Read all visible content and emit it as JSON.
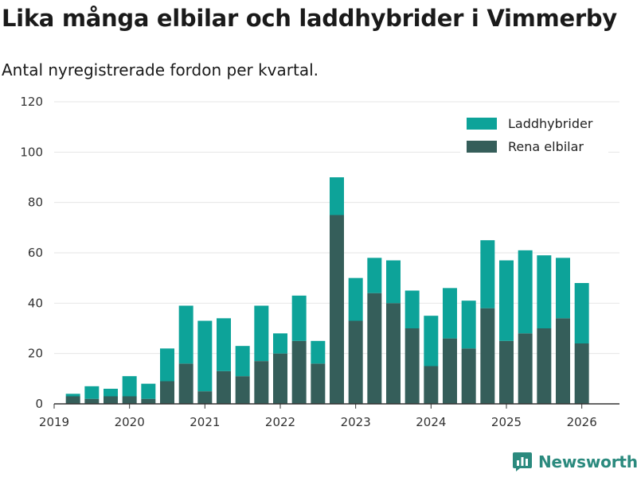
{
  "header": {
    "title": "Lika många elbilar och laddhybrider i Vimmerby",
    "subtitle": "Antal nyregistrerade fordon per kvartal."
  },
  "brand": {
    "name": "Newsworthy",
    "logo_icon": "chart-logo-icon"
  },
  "colors": {
    "plugin": "#0da399",
    "electric": "#355e5a",
    "grid": "#e6e6e6",
    "axis": "#333333"
  },
  "chart_data": {
    "type": "bar",
    "stacked": true,
    "title": "Lika många elbilar och laddhybrider i Vimmerby",
    "subtitle": "Antal nyregistrerade fordon per kvartal.",
    "xlabel": "",
    "ylabel": "",
    "ylim": [
      0,
      120
    ],
    "yticks": [
      0,
      20,
      40,
      60,
      80,
      100,
      120
    ],
    "xlim": [
      2019.0,
      2026.5
    ],
    "xticks": [
      2019,
      2020,
      2021,
      2022,
      2023,
      2024,
      2025,
      2026
    ],
    "grid": true,
    "legend_position": "top-right",
    "categories": [
      "2019 Q2",
      "2019 Q3",
      "2019 Q4",
      "2020 Q1",
      "2020 Q2",
      "2020 Q3",
      "2020 Q4",
      "2021 Q1",
      "2021 Q2",
      "2021 Q3",
      "2021 Q4",
      "2022 Q1",
      "2022 Q2",
      "2022 Q3",
      "2022 Q4",
      "2023 Q1",
      "2023 Q2",
      "2023 Q3",
      "2023 Q4",
      "2024 Q1",
      "2024 Q2",
      "2024 Q3",
      "2024 Q4",
      "2025 Q1",
      "2025 Q2",
      "2025 Q3",
      "2025 Q4",
      "2026 Q1"
    ],
    "x": [
      2019.25,
      2019.5,
      2019.75,
      2020.0,
      2020.25,
      2020.5,
      2020.75,
      2021.0,
      2021.25,
      2021.5,
      2021.75,
      2022.0,
      2022.25,
      2022.5,
      2022.75,
      2023.0,
      2023.25,
      2023.5,
      2023.75,
      2024.0,
      2024.25,
      2024.5,
      2024.75,
      2025.0,
      2025.25,
      2025.5,
      2025.75,
      2026.0
    ],
    "series": [
      {
        "name": "Rena elbilar",
        "color": "#355e5a",
        "values": [
          3,
          2,
          3,
          3,
          2,
          9,
          16,
          5,
          13,
          11,
          17,
          20,
          25,
          16,
          75,
          33,
          44,
          40,
          30,
          15,
          26,
          22,
          38,
          25,
          28,
          30,
          34,
          24
        ]
      },
      {
        "name": "Laddhybrider",
        "color": "#0da399",
        "values": [
          1,
          5,
          3,
          8,
          6,
          13,
          23,
          28,
          21,
          12,
          22,
          8,
          18,
          9,
          15,
          17,
          14,
          17,
          15,
          20,
          20,
          19,
          27,
          32,
          33,
          29,
          24,
          24
        ]
      }
    ],
    "legend": [
      "Laddhybrider",
      "Rena elbilar"
    ]
  }
}
